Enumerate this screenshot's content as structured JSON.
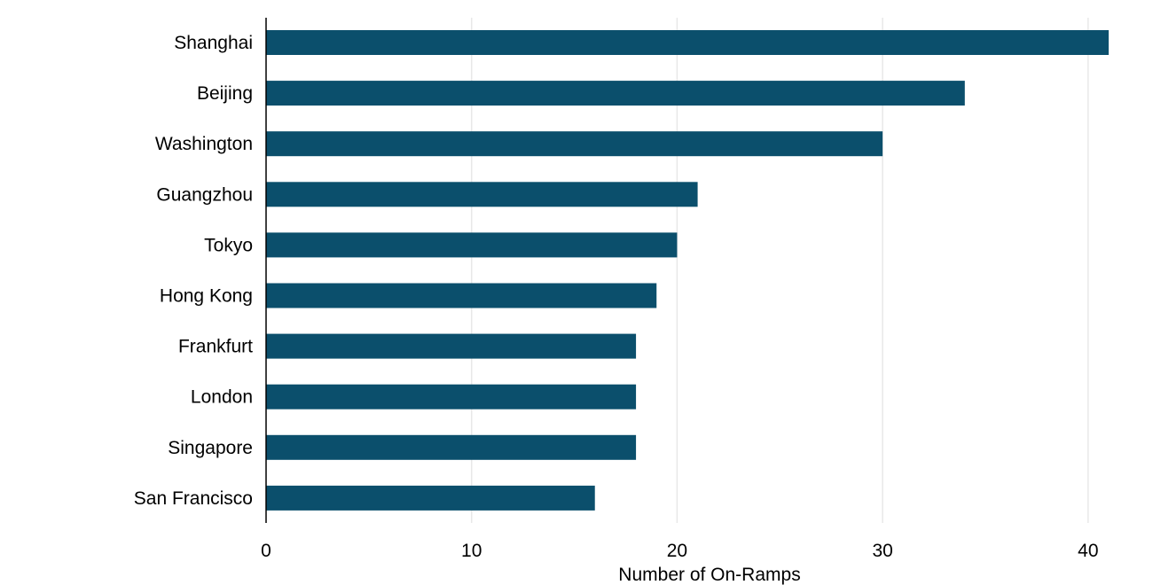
{
  "chart_data": {
    "type": "bar",
    "orientation": "horizontal",
    "title": "",
    "xlabel": "Number of On-Ramps",
    "ylabel": "",
    "categories": [
      "Shanghai",
      "Beijing",
      "Washington",
      "Guangzhou",
      "Tokyo",
      "Hong Kong",
      "Frankfurt",
      "London",
      "Singapore",
      "San Francisco"
    ],
    "values": [
      41,
      34,
      30,
      21,
      20,
      19,
      18,
      18,
      18,
      16
    ],
    "xlim": [
      0,
      41
    ],
    "xticks": [
      "0",
      "10",
      "20",
      "30",
      "40"
    ],
    "grid": "vertical",
    "legend": "none",
    "bar_color": "#0b4f6c",
    "grid_color": "#e8e8e8",
    "axis_color": "#000000"
  }
}
